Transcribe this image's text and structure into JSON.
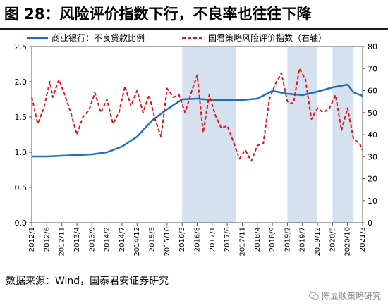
{
  "title": "图 28：风险评价指数下行，不良率也往往下降",
  "source_text": "数据来源：Wind，国泰君安证券研究",
  "watermark_text": "陈显顺策略研究",
  "chart_data": {
    "type": "line",
    "x": [
      "2012/1",
      "2012/6",
      "2012/11",
      "2013/4",
      "2013/9",
      "2014/2",
      "2014/7",
      "2014/12",
      "2015/5",
      "2015/10",
      "2016/3",
      "2016/8",
      "2017/1",
      "2017/6",
      "2017/11",
      "2018/4",
      "2018/9",
      "2019/2",
      "2019/7",
      "2019/12",
      "2020/5",
      "2020/10",
      "2021/3"
    ],
    "ylim_left": [
      0.0,
      2.5
    ],
    "yticks_left": [
      "0.0",
      "0.5",
      "1.0",
      "1.5",
      "2.0",
      "2.5"
    ],
    "ylim_right": [
      0,
      80
    ],
    "yticks_right": [
      "0",
      "10",
      "20",
      "30",
      "40",
      "50",
      "60",
      "70",
      "80"
    ],
    "shaded_regions": [
      {
        "start": "2016/3",
        "end": "2017/9"
      },
      {
        "start": "2019/2",
        "end": "2019/12"
      },
      {
        "start": "2020/5",
        "end": "2020/12"
      }
    ],
    "series": [
      {
        "name": "商业银行：不良贷款比例",
        "axis": "left",
        "color": "#1f6fbf",
        "points": [
          [
            "2012/1",
            0.94
          ],
          [
            "2012/6",
            0.94
          ],
          [
            "2012/11",
            0.95
          ],
          [
            "2013/4",
            0.96
          ],
          [
            "2013/9",
            0.97
          ],
          [
            "2014/2",
            1.0
          ],
          [
            "2014/7",
            1.08
          ],
          [
            "2014/12",
            1.22
          ],
          [
            "2015/5",
            1.45
          ],
          [
            "2015/10",
            1.61
          ],
          [
            "2016/3",
            1.75
          ],
          [
            "2016/8",
            1.76
          ],
          [
            "2017/1",
            1.74
          ],
          [
            "2017/6",
            1.74
          ],
          [
            "2017/11",
            1.74
          ],
          [
            "2018/4",
            1.76
          ],
          [
            "2018/9",
            1.87
          ],
          [
            "2019/2",
            1.83
          ],
          [
            "2019/7",
            1.81
          ],
          [
            "2019/12",
            1.86
          ],
          [
            "2020/5",
            1.92
          ],
          [
            "2020/10",
            1.96
          ],
          [
            "2020/12",
            1.85
          ],
          [
            "2021/3",
            1.8
          ]
        ]
      },
      {
        "name": "国君策略风险评价指数（右轴）",
        "axis": "right",
        "color": "#e0121a",
        "points": [
          [
            "2012/1",
            57
          ],
          [
            "2012/3",
            45
          ],
          [
            "2012/5",
            52
          ],
          [
            "2012/7",
            64
          ],
          [
            "2012/8",
            57
          ],
          [
            "2012/10",
            65
          ],
          [
            "2012/12",
            58
          ],
          [
            "2013/2",
            50
          ],
          [
            "2013/4",
            40
          ],
          [
            "2013/6",
            48
          ],
          [
            "2013/8",
            51
          ],
          [
            "2013/10",
            59
          ],
          [
            "2013/12",
            50
          ],
          [
            "2014/2",
            56
          ],
          [
            "2014/4",
            45
          ],
          [
            "2014/6",
            50
          ],
          [
            "2014/8",
            62
          ],
          [
            "2014/10",
            53
          ],
          [
            "2014/12",
            60
          ],
          [
            "2015/2",
            50
          ],
          [
            "2015/4",
            58
          ],
          [
            "2015/6",
            47
          ],
          [
            "2015/8",
            39
          ],
          [
            "2015/10",
            61
          ],
          [
            "2015/12",
            57
          ],
          [
            "2016/2",
            58
          ],
          [
            "2016/4",
            50
          ],
          [
            "2016/6",
            59
          ],
          [
            "2016/8",
            67
          ],
          [
            "2016/10",
            41
          ],
          [
            "2016/12",
            58
          ],
          [
            "2017/2",
            49
          ],
          [
            "2017/4",
            43
          ],
          [
            "2017/6",
            44
          ],
          [
            "2017/8",
            37
          ],
          [
            "2017/10",
            29
          ],
          [
            "2017/12",
            33
          ],
          [
            "2018/2",
            28
          ],
          [
            "2018/4",
            35
          ],
          [
            "2018/6",
            36
          ],
          [
            "2018/8",
            56
          ],
          [
            "2018/10",
            63
          ],
          [
            "2018/12",
            68
          ],
          [
            "2019/2",
            55
          ],
          [
            "2019/4",
            54
          ],
          [
            "2019/6",
            70
          ],
          [
            "2019/8",
            65
          ],
          [
            "2019/10",
            47
          ],
          [
            "2019/12",
            52
          ],
          [
            "2020/2",
            50
          ],
          [
            "2020/4",
            52
          ],
          [
            "2020/6",
            58
          ],
          [
            "2020/8",
            42
          ],
          [
            "2020/10",
            52
          ],
          [
            "2020/12",
            38
          ],
          [
            "2021/2",
            36
          ],
          [
            "2021/3",
            33
          ]
        ]
      }
    ]
  }
}
